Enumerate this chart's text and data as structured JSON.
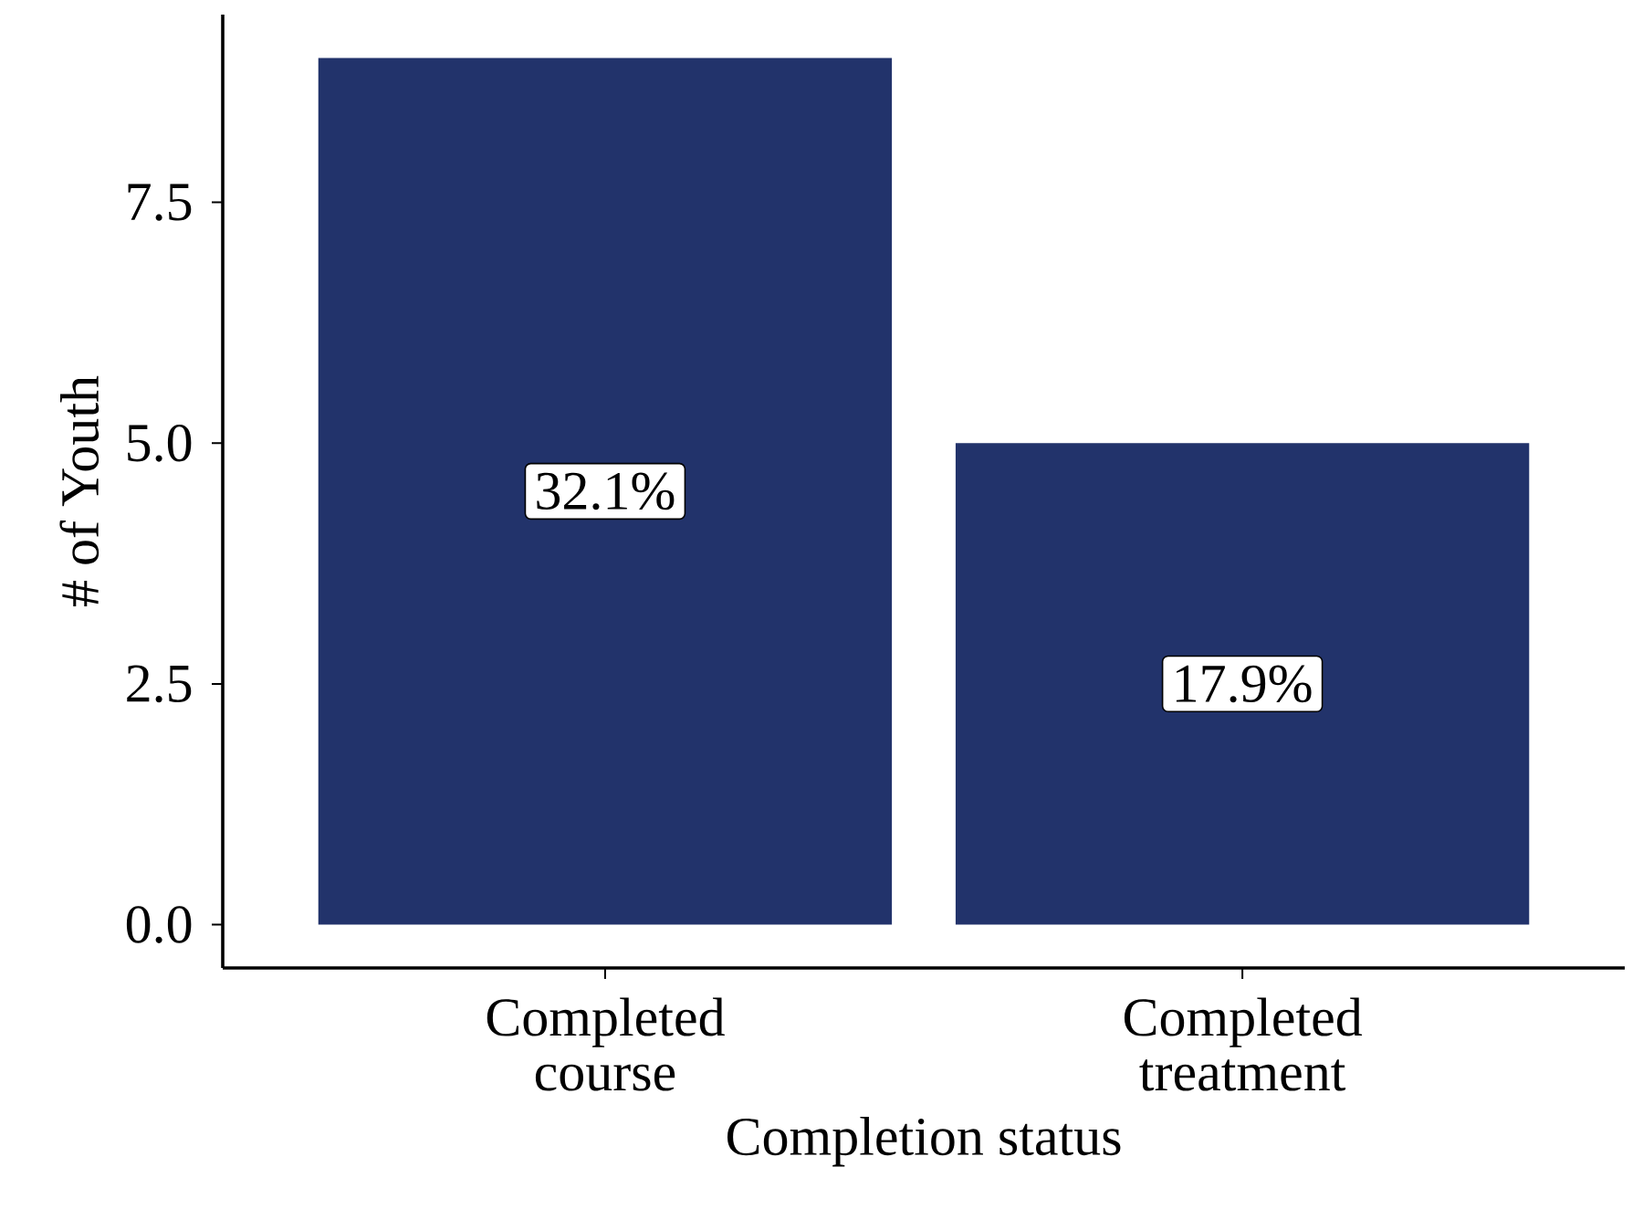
{
  "chart_data": {
    "type": "bar",
    "xlabel": "Completion status",
    "ylabel": "# of Youth",
    "categories": [
      "Completed course",
      "Completed treatment"
    ],
    "values": [
      9,
      5
    ],
    "annotations": [
      "32.1%",
      "17.9%"
    ],
    "color": "#22336b",
    "ylim": [
      -0.45,
      9.45
    ],
    "yticks": [
      {
        "value": 0,
        "label": "0.0"
      },
      {
        "value": 2.5,
        "label": "2.5"
      },
      {
        "value": 5,
        "label": "5.0"
      },
      {
        "value": 7.5,
        "label": "7.5"
      }
    ],
    "grid": false
  }
}
